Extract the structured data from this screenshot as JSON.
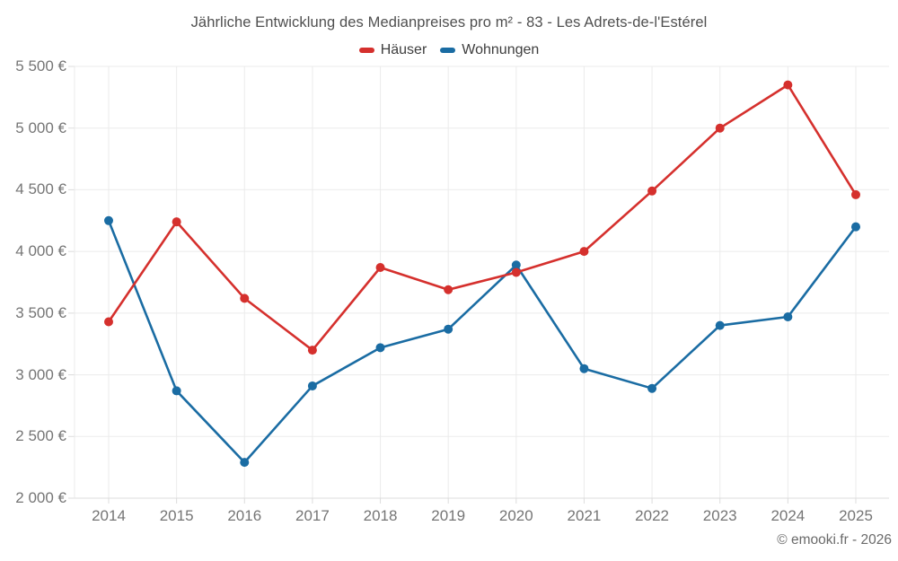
{
  "chart_data": {
    "type": "line",
    "title": "Jährliche Entwicklung des Medianpreises pro m² - 83 - Les Adrets-de-l'Estérel",
    "categories": [
      "2014",
      "2015",
      "2016",
      "2017",
      "2018",
      "2019",
      "2020",
      "2021",
      "2022",
      "2023",
      "2024",
      "2025"
    ],
    "series": [
      {
        "name": "Häuser",
        "color": "#d5302d",
        "values": [
          3430,
          4240,
          3620,
          3200,
          3870,
          3690,
          3830,
          4000,
          4490,
          5000,
          5350,
          4460
        ]
      },
      {
        "name": "Wohnungen",
        "color": "#1a6ca3",
        "values": [
          4250,
          2870,
          2290,
          2910,
          3220,
          3370,
          3890,
          3050,
          2890,
          3400,
          3470,
          4200
        ]
      }
    ],
    "xlabel": "",
    "ylabel": "",
    "y_axis": {
      "min": 2000,
      "max": 5500,
      "tick_step": 500,
      "tick_values": [
        2000,
        2500,
        3000,
        3500,
        4000,
        4500,
        5000,
        5500
      ],
      "tick_labels": [
        "2 000 €",
        "2 500 €",
        "3 000 €",
        "3 500 €",
        "4 000 €",
        "4 500 €",
        "5 000 €",
        "5 500 €"
      ]
    },
    "grid": true,
    "legend_position": "top",
    "draw_order": [
      "Wohnungen",
      "Häuser"
    ]
  },
  "footer": {
    "credit": "© emooki.fr - 2026"
  },
  "colors": {
    "background": "#ffffff",
    "gridline": "#ebebeb",
    "axis_line": "#dcdcdc",
    "axis_label": "#757575",
    "title_text": "#4f4f4f",
    "footer_text": "#6a6a6a",
    "haeuser": "#d5302d",
    "wohnungen": "#1a6ca3"
  }
}
